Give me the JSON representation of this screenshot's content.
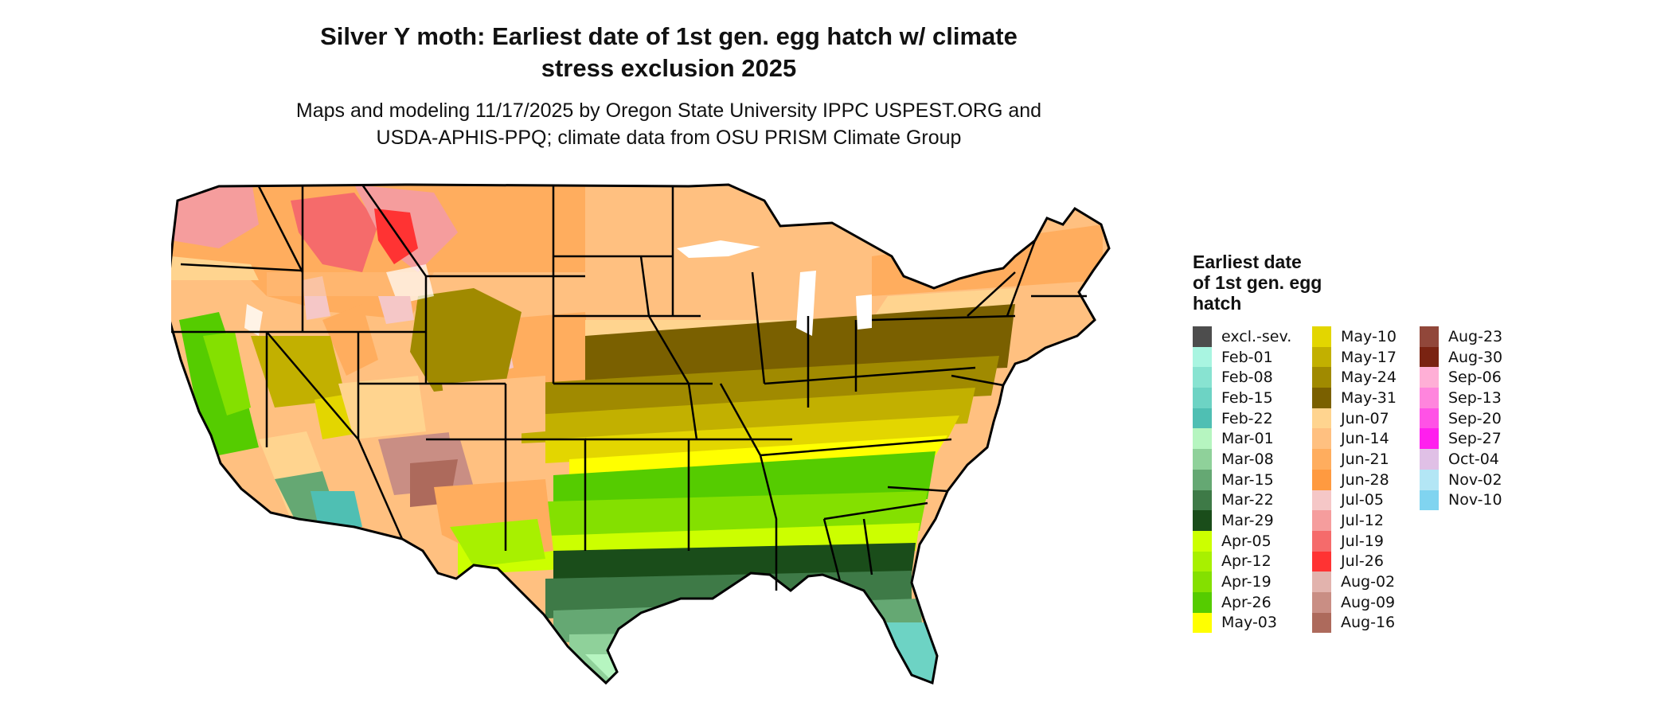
{
  "header": {
    "title_line1": "Silver Y moth: Earliest date of 1st gen. egg hatch w/ climate",
    "title_line2": "stress exclusion 2025",
    "subtitle_line1": "Maps and modeling 11/17/2025 by Oregon State University IPPC USPEST.ORG and",
    "subtitle_line2": "USDA-APHIS-PPQ; climate data from OSU PRISM Climate Group"
  },
  "legend": {
    "title_line1": "Earliest date",
    "title_line2": "of 1st gen. egg",
    "title_line3": "hatch",
    "columns": [
      [
        {
          "label": "excl.-sev.",
          "color": "#4d4d4d"
        },
        {
          "label": "Feb-01",
          "color": "#a9f5e1"
        },
        {
          "label": "Feb-08",
          "color": "#88e3d1"
        },
        {
          "label": "Feb-15",
          "color": "#6dd3c4"
        },
        {
          "label": "Feb-22",
          "color": "#4fbfb3"
        },
        {
          "label": "Mar-01",
          "color": "#b6f5c0"
        },
        {
          "label": "Mar-08",
          "color": "#8fd19a"
        },
        {
          "label": "Mar-15",
          "color": "#65a873"
        },
        {
          "label": "Mar-22",
          "color": "#3e7a47"
        },
        {
          "label": "Mar-29",
          "color": "#1a4d1a"
        },
        {
          "label": "Apr-05",
          "color": "#ccff00"
        },
        {
          "label": "Apr-12",
          "color": "#a8f000"
        },
        {
          "label": "Apr-19",
          "color": "#84e000"
        },
        {
          "label": "Apr-26",
          "color": "#55cc00"
        },
        {
          "label": "May-03",
          "color": "#ffff00"
        }
      ],
      [
        {
          "label": "May-10",
          "color": "#e3d600"
        },
        {
          "label": "May-17",
          "color": "#c2b000"
        },
        {
          "label": "May-24",
          "color": "#a08a00"
        },
        {
          "label": "May-31",
          "color": "#7a6000"
        },
        {
          "label": "Jun-07",
          "color": "#ffd48f"
        },
        {
          "label": "Jun-14",
          "color": "#ffc080"
        },
        {
          "label": "Jun-21",
          "color": "#ffad5e"
        },
        {
          "label": "Jun-28",
          "color": "#ff9a40"
        },
        {
          "label": "Jul-05",
          "color": "#f5c7c7"
        },
        {
          "label": "Jul-12",
          "color": "#f59d9d"
        },
        {
          "label": "Jul-19",
          "color": "#f56b6b"
        },
        {
          "label": "Jul-26",
          "color": "#ff3333"
        },
        {
          "label": "Aug-02",
          "color": "#e2b3ad"
        },
        {
          "label": "Aug-09",
          "color": "#c98e84"
        },
        {
          "label": "Aug-16",
          "color": "#ad6a5c"
        }
      ],
      [
        {
          "label": "Aug-23",
          "color": "#91473a"
        },
        {
          "label": "Aug-30",
          "color": "#7a2312"
        },
        {
          "label": "Sep-06",
          "color": "#ffafd6"
        },
        {
          "label": "Sep-13",
          "color": "#ff85dd"
        },
        {
          "label": "Sep-20",
          "color": "#ff52e6"
        },
        {
          "label": "Sep-27",
          "color": "#ff1fee"
        },
        {
          "label": "Oct-04",
          "color": "#e0c0e6"
        },
        {
          "label": "Nov-02",
          "color": "#b3e6f5"
        },
        {
          "label": "Nov-10",
          "color": "#80d4f0"
        }
      ]
    ]
  }
}
